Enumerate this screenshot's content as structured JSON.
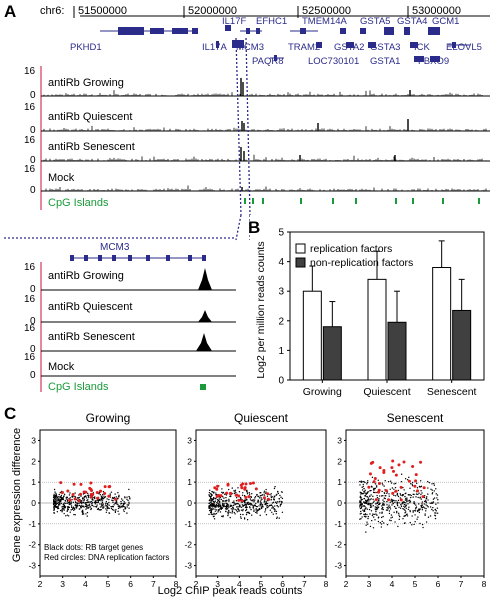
{
  "panels": {
    "A": "A",
    "B": "B",
    "C": "C"
  },
  "browser_top": {
    "chrom": "chr6:",
    "positions": [
      "51500000",
      "52000000",
      "52500000",
      "53000000"
    ],
    "genes_row1": [
      "IL17F",
      "EFHC1",
      "TMEM14A",
      "GSTA5",
      "GSTA4",
      "GCM1"
    ],
    "genes_row2": [
      "PKHD1",
      "IL17A",
      "MCM3",
      "TRAM2",
      "GSTA2",
      "GSTA3",
      "ICK",
      "ELOVL5"
    ],
    "genes_row3": [
      "PAQR8",
      "LOC730101",
      "GSTA1",
      "FBXO9"
    ],
    "tracks": [
      {
        "label": "antiRb Growing",
        "max": "16",
        "min": "0"
      },
      {
        "label": "antiRb Quiescent",
        "max": "16",
        "min": "0"
      },
      {
        "label": "antiRb Senescent",
        "max": "16",
        "min": "0"
      },
      {
        "label": "Mock",
        "max": "16",
        "min": "0"
      }
    ],
    "cpg_label": "CpG Islands"
  },
  "browser_zoom": {
    "gene": "MCM3",
    "tracks": [
      {
        "label": "antiRb Growing",
        "max": "16",
        "min": "0"
      },
      {
        "label": "antiRb Quiescent",
        "max": "16",
        "min": "0"
      },
      {
        "label": "antiRb Senescent",
        "max": "16",
        "min": "0"
      },
      {
        "label": "Mock",
        "max": "16",
        "min": "0"
      }
    ],
    "cpg_label": "CpG Islands"
  },
  "colors": {
    "gene": "#2b2b8a",
    "cpg": "#1a9a3a",
    "accent_line": "#d63a5a",
    "dark_bar": "#404040",
    "red_dots": "#e02020"
  },
  "chart_data": [
    {
      "type": "bar",
      "categories": [
        "Growing",
        "Quiescent",
        "Senescent"
      ],
      "series": [
        {
          "name": "replication factors",
          "values": [
            3.0,
            3.4,
            3.8
          ],
          "errors": [
            0.85,
            0.95,
            0.9
          ]
        },
        {
          "name": "non-replication factors",
          "values": [
            1.8,
            1.95,
            2.35
          ],
          "errors": [
            0.85,
            1.05,
            1.05
          ]
        }
      ],
      "ylabel": "Log2 per million reads counts",
      "ylim": [
        0,
        5
      ],
      "yticks": [
        "0",
        "1",
        "2",
        "3",
        "4",
        "5"
      ],
      "legend": "top-left"
    },
    {
      "type": "scatter",
      "panels": [
        "Growing",
        "Quiescent",
        "Senescent"
      ],
      "xlabel": "Log2 ChIP peak reads counts",
      "ylabel": "Gene expression difference",
      "xlim": [
        2,
        8
      ],
      "ylim": [
        -3.5,
        3.5
      ],
      "xticks": [
        "2",
        "3",
        "4",
        "5",
        "6",
        "7",
        "8"
      ],
      "yticks": [
        "-3",
        "-2",
        "-1",
        "0",
        "1",
        "2",
        "3"
      ],
      "annotations": [
        "Black dots: RB target genes",
        "Red circles: DNA replication factors"
      ]
    }
  ]
}
